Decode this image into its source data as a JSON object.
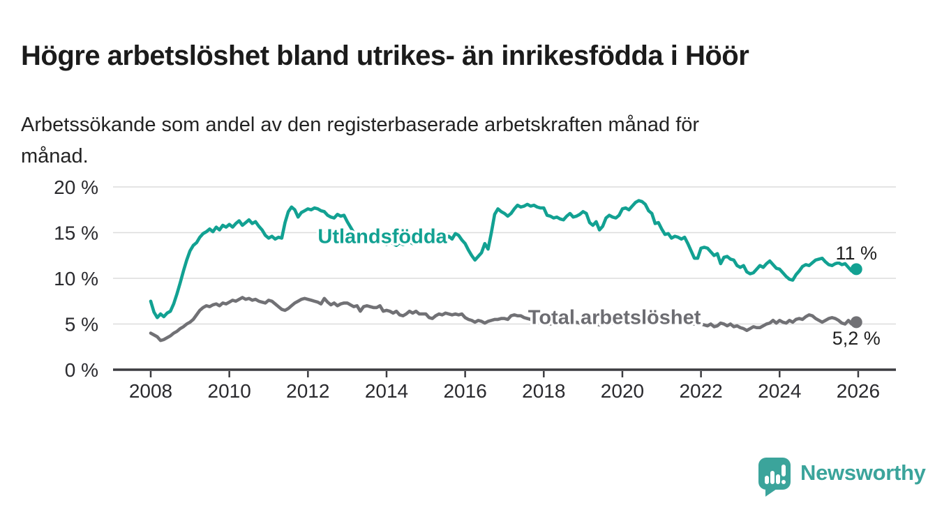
{
  "header": {
    "title": "Högre arbetslöshet bland utrikes- än inrikesfödda i Höör",
    "subtitle_line1": "Arbetssökande som andel av den registerbaserade arbetskraften månad för",
    "subtitle_line2": "månad."
  },
  "colors": {
    "foreign_born_line": "#12a192",
    "total_line": "#717175",
    "total_label": "#6d6d72",
    "axis": "#3c3c40",
    "grid": "#dcdcdc",
    "tick_text": "#2a2a2e",
    "end_label_text": "#1f1f1f",
    "logo_teal": "#3ba49b",
    "background": "#ffffff"
  },
  "branding": {
    "name": "Newsworthy",
    "logo_icon": "bar-chart-speech-bubble-icon"
  },
  "chart_data": {
    "type": "line",
    "title": "Högre arbetslöshet bland utrikes- än inrikesfödda i Höör",
    "subtitle": "Arbetssökande som andel av den registerbaserade arbetskraften månad för månad.",
    "x_start_year": 2008,
    "points_per_year": 12,
    "x_ticks": [
      2008,
      2010,
      2012,
      2014,
      2016,
      2018,
      2020,
      2022,
      2024,
      2026
    ],
    "y_ticks": [
      0,
      5,
      10,
      15,
      20
    ],
    "y_tick_suffix": " %",
    "ylim": [
      0,
      20
    ],
    "grid": "horizontal-only",
    "legend_position": "inline-labels",
    "series": [
      {
        "name": "Utlandsfödda",
        "color_key": "foreign_born_line",
        "end_label": "11 %",
        "end_value": 11.0,
        "label_year": 2012.25,
        "label_value": 14.6,
        "values": [
          7.5,
          6.3,
          5.7,
          6.1,
          5.8,
          6.2,
          6.4,
          7.2,
          8.3,
          9.5,
          10.8,
          12.0,
          13.0,
          13.6,
          13.9,
          14.5,
          14.9,
          15.1,
          15.4,
          15.1,
          15.6,
          15.3,
          15.8,
          15.6,
          15.9,
          15.6,
          16.0,
          16.3,
          15.8,
          16.1,
          16.4,
          16.0,
          16.2,
          15.7,
          15.3,
          14.7,
          14.4,
          14.6,
          14.3,
          14.5,
          14.4,
          16.1,
          17.3,
          17.8,
          17.5,
          16.7,
          17.2,
          17.4,
          17.6,
          17.5,
          17.7,
          17.6,
          17.4,
          17.3,
          16.9,
          16.7,
          16.6,
          17.0,
          16.8,
          16.9,
          16.2,
          15.6,
          15.0,
          14.5,
          14.1,
          14.0,
          14.2,
          13.9,
          14.0,
          13.8,
          14.0,
          13.9,
          13.7,
          14.0,
          13.8,
          13.6,
          13.9,
          13.7,
          13.8,
          14.0,
          13.8,
          14.1,
          13.9,
          14.0,
          14.1,
          13.9,
          14.2,
          14.0,
          14.3,
          14.1,
          14.4,
          14.6,
          14.3,
          14.9,
          14.7,
          14.2,
          13.8,
          13.1,
          12.5,
          12.0,
          12.4,
          12.8,
          13.8,
          13.2,
          15.0,
          17.0,
          17.6,
          17.3,
          17.1,
          16.8,
          17.1,
          17.6,
          18.0,
          17.8,
          17.9,
          18.1,
          17.9,
          18.0,
          17.8,
          17.7,
          17.7,
          16.9,
          16.8,
          16.6,
          16.7,
          16.5,
          16.4,
          16.8,
          17.1,
          16.7,
          16.8,
          17.0,
          17.3,
          17.1,
          16.1,
          15.8,
          16.2,
          15.3,
          15.7,
          16.6,
          16.9,
          16.7,
          16.6,
          16.9,
          17.6,
          17.7,
          17.5,
          17.9,
          18.3,
          18.5,
          18.4,
          18.1,
          17.4,
          17.1,
          16.0,
          16.1,
          15.4,
          14.8,
          14.9,
          14.4,
          14.6,
          14.5,
          14.3,
          14.5,
          13.8,
          13.0,
          12.2,
          12.2,
          13.3,
          13.4,
          13.3,
          12.9,
          12.5,
          12.7,
          11.6,
          12.3,
          12.4,
          12.1,
          12.0,
          11.4,
          11.2,
          11.4,
          10.7,
          10.5,
          10.6,
          11.0,
          11.4,
          11.2,
          11.6,
          11.9,
          11.5,
          11.1,
          11.0,
          10.6,
          10.2,
          9.9,
          9.8,
          10.4,
          10.8,
          11.3,
          11.5,
          11.4,
          11.7,
          12.0,
          12.1,
          12.2,
          11.8,
          11.5,
          11.4,
          11.6,
          11.7,
          11.5,
          11.6,
          11.2,
          10.8,
          11.0
        ]
      },
      {
        "name": "Total arbetslöshet",
        "color_key": "total_line",
        "end_label": "5,2 %",
        "end_value": 5.2,
        "label_year": 2017.6,
        "label_value": 5.75,
        "values": [
          4.0,
          3.8,
          3.6,
          3.2,
          3.3,
          3.5,
          3.7,
          4.0,
          4.2,
          4.5,
          4.7,
          5.0,
          5.2,
          5.5,
          6.0,
          6.5,
          6.8,
          7.0,
          6.9,
          7.1,
          7.2,
          7.0,
          7.3,
          7.2,
          7.4,
          7.6,
          7.5,
          7.7,
          7.9,
          7.7,
          7.8,
          7.6,
          7.7,
          7.5,
          7.4,
          7.3,
          7.6,
          7.5,
          7.2,
          6.9,
          6.6,
          6.5,
          6.7,
          7.0,
          7.3,
          7.5,
          7.7,
          7.8,
          7.7,
          7.6,
          7.5,
          7.4,
          7.2,
          7.8,
          7.4,
          7.1,
          7.3,
          7.0,
          7.2,
          7.3,
          7.3,
          7.1,
          6.9,
          7.0,
          6.4,
          6.9,
          7.0,
          6.9,
          6.8,
          6.8,
          7.0,
          6.4,
          6.5,
          6.4,
          6.2,
          6.4,
          6.0,
          5.9,
          6.1,
          6.4,
          6.2,
          6.4,
          6.1,
          6.1,
          6.1,
          5.7,
          5.6,
          5.9,
          6.1,
          6.0,
          6.2,
          6.1,
          6.0,
          6.1,
          6.0,
          6.1,
          5.7,
          5.5,
          5.4,
          5.2,
          5.4,
          5.3,
          5.1,
          5.3,
          5.4,
          5.5,
          5.5,
          5.6,
          5.6,
          5.5,
          5.9,
          6.0,
          5.9,
          5.9,
          5.7,
          5.6,
          5.5,
          5.4,
          5.3,
          5.4,
          5.4,
          5.2,
          5.0,
          5.1,
          4.9,
          5.0,
          5.1,
          5.2,
          5.0,
          5.1,
          5.2,
          5.1,
          5.2,
          5.0,
          4.9,
          5.1,
          5.0,
          4.9,
          5.0,
          5.1,
          5.2,
          5.1,
          5.2,
          5.3,
          5.4,
          5.3,
          5.5,
          5.8,
          5.9,
          6.0,
          5.9,
          5.8,
          5.7,
          5.6,
          5.5,
          5.5,
          5.5,
          5.4,
          5.4,
          5.3,
          5.2,
          5.2,
          5.1,
          5.2,
          5.1,
          5.0,
          5.0,
          5.0,
          5.0,
          4.9,
          4.8,
          5.0,
          4.7,
          4.8,
          5.1,
          5.0,
          4.8,
          5.0,
          4.7,
          4.8,
          4.6,
          4.5,
          4.3,
          4.5,
          4.7,
          4.6,
          4.6,
          4.8,
          5.0,
          5.1,
          5.4,
          5.1,
          5.4,
          5.2,
          5.1,
          5.4,
          5.2,
          5.5,
          5.6,
          5.5,
          5.8,
          6.0,
          5.9,
          5.6,
          5.4,
          5.2,
          5.4,
          5.6,
          5.7,
          5.6,
          5.4,
          5.1,
          5.0,
          5.4,
          5.0,
          5.2
        ]
      }
    ]
  }
}
